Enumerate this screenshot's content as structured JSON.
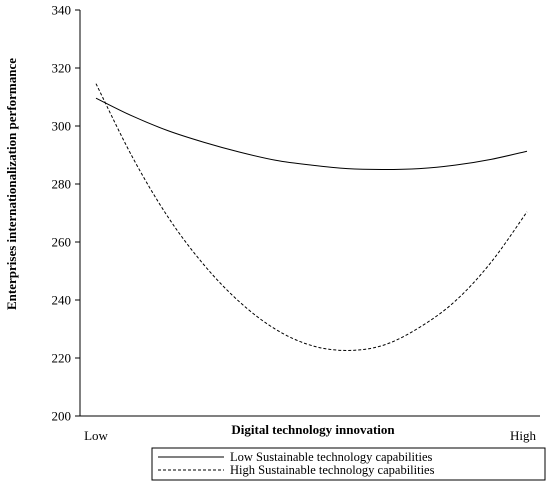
{
  "chart_data": {
    "type": "line",
    "title": "",
    "xlabel": "Digital technology innovation",
    "ylabel": "Enterprises internationalization performance",
    "x_tick_labels": [
      "Low",
      "High"
    ],
    "ylim": [
      200,
      340
    ],
    "yticks": [
      200,
      220,
      240,
      260,
      280,
      300,
      320,
      340
    ],
    "grid": false,
    "legend_position": "bottom",
    "series": [
      {
        "name": "Low Sustainable technology capabilities",
        "style": "solid",
        "color": "#000000",
        "values": [
          309.6,
          303.5,
          298.4,
          294.4,
          291.0,
          288.2,
          286.5,
          285.3,
          285.0,
          285.3,
          286.5,
          288.5,
          291.3
        ]
      },
      {
        "name": "High Sustainable technology capabilities",
        "style": "dashed",
        "color": "#000000",
        "values": [
          314.6,
          289.6,
          268.7,
          252.2,
          239.3,
          229.9,
          224.3,
          222.6,
          224.4,
          230.5,
          239.6,
          253.0,
          270.4
        ]
      }
    ]
  }
}
